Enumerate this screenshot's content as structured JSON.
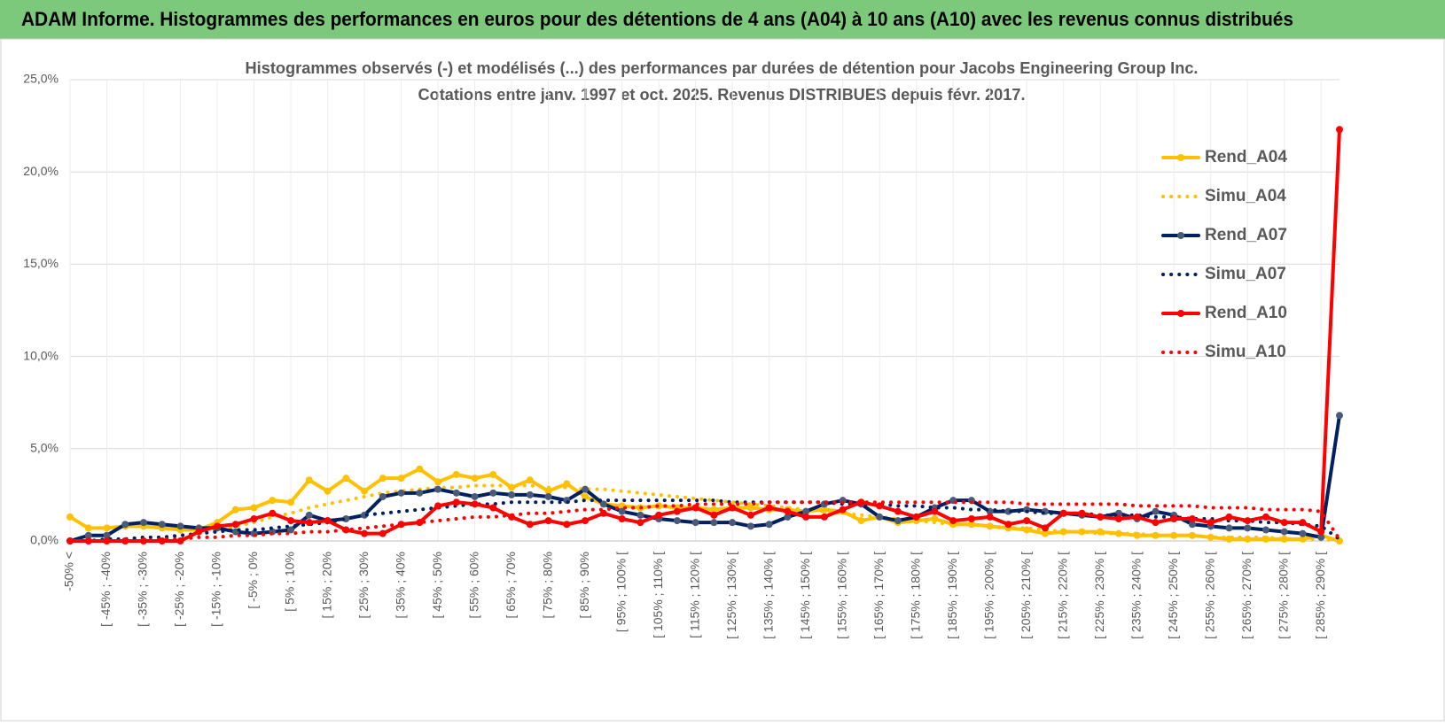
{
  "header": {
    "title": "ADAM Informe. Histogrammes des performances en euros pour des détentions de 4 ans (A04) à 10 ans (A10) avec les revenus connus distribués"
  },
  "chart_data": {
    "type": "line",
    "title": "Histogrammes observés (-) et modélisés (...) des performances par durées de détention pour Jacobs Engineering Group Inc.",
    "subtitle": "Cotations entre janv. 1997 et oct. 2025.  Revenus DISTRIBUES depuis févr. 2017.",
    "categories": [
      "-50% <",
      null,
      "[ -45% ; -40%",
      null,
      "[ -35% ; -30%",
      null,
      "[ -25% ; -20%",
      null,
      "[ -15% ; -10%",
      null,
      "[ -5% ; 0%",
      null,
      "[ 5% ; 10%",
      null,
      "[ 15% ; 20%",
      null,
      "[ 25% ; 30%",
      null,
      "[ 35% ; 40%",
      null,
      "[ 45% ; 50%",
      null,
      "[ 55% ; 60%",
      null,
      "[ 65% ; 70%",
      null,
      "[ 75% ; 80%",
      null,
      "[ 85% ; 90%",
      null,
      "[ 95% ; 100% [",
      null,
      "[ 105% ; 110% [",
      null,
      "[ 115% ; 120% [",
      null,
      "[ 125% ; 130% [",
      null,
      "[ 135% ; 140% [",
      null,
      "[ 145% ; 150% [",
      null,
      "[ 155% ; 160% [",
      null,
      "[ 165% ; 170% [",
      null,
      "[ 175% ; 180% [",
      null,
      "[ 185% ; 190% [",
      null,
      "[ 195% ; 200% [",
      null,
      "[ 205% ; 210% [",
      null,
      "[ 215% ; 220% [",
      null,
      "[ 225% ; 230% [",
      null,
      "[ 235% ; 240% [",
      null,
      "[ 245% ; 250% [",
      null,
      "[ 255% ; 260% [",
      null,
      "[ 265% ; 270% [",
      null,
      "[ 275% ; 280% [",
      null,
      "[ 285% ; 290% [",
      null
    ],
    "ylim": [
      0,
      25
    ],
    "yticks": [
      {
        "value": 0,
        "label": "0,0%"
      },
      {
        "value": 5,
        "label": "5,0%"
      },
      {
        "value": 10,
        "label": "10,0%"
      },
      {
        "value": 15,
        "label": "15,0%"
      },
      {
        "value": 20,
        "label": "20,0%"
      },
      {
        "value": 25,
        "label": "25,0%"
      }
    ],
    "grid": true,
    "legend": "right",
    "series": [
      {
        "name": "Rend_A04",
        "color": "#FFC000",
        "style": "solid",
        "values": [
          1.3,
          0.7,
          0.7,
          0.8,
          0.8,
          0.7,
          0.6,
          0.6,
          1.0,
          1.7,
          1.8,
          2.2,
          2.1,
          3.3,
          2.7,
          3.4,
          2.7,
          3.4,
          3.4,
          3.9,
          3.2,
          3.6,
          3.4,
          3.6,
          2.9,
          3.3,
          2.7,
          3.1,
          2.4,
          2.0,
          1.9,
          1.8,
          1.9,
          1.8,
          1.8,
          1.7,
          1.8,
          1.8,
          1.7,
          1.7,
          1.6,
          1.7,
          1.6,
          1.1,
          1.3,
          1.0,
          1.1,
          1.2,
          0.9,
          0.9,
          0.8,
          0.7,
          0.6,
          0.4,
          0.5,
          0.5,
          0.5,
          0.4,
          0.3,
          0.3,
          0.3,
          0.3,
          0.2,
          0.1,
          0.1,
          0.1,
          0.1,
          0.1,
          0.3,
          0.0
        ]
      },
      {
        "name": "Simu_A04",
        "color": "#FFC000",
        "style": "dotted",
        "values": [
          0.0,
          0.0,
          0.1,
          0.1,
          0.2,
          0.2,
          0.3,
          0.4,
          0.6,
          0.8,
          1.0,
          1.3,
          1.5,
          1.8,
          2.0,
          2.2,
          2.4,
          2.6,
          2.7,
          2.8,
          2.9,
          2.9,
          3.0,
          3.0,
          3.0,
          3.0,
          2.9,
          2.9,
          2.8,
          2.8,
          2.7,
          2.6,
          2.5,
          2.4,
          2.3,
          2.2,
          2.1,
          2.0,
          1.9,
          1.8,
          1.7,
          1.6,
          1.5,
          1.4,
          1.3,
          1.2,
          1.1,
          1.0,
          0.9,
          0.9,
          0.8,
          0.7,
          0.7,
          0.6,
          0.5,
          0.5,
          0.4,
          0.4,
          0.4,
          0.3,
          0.3,
          0.3,
          0.2,
          0.2,
          0.2,
          0.2,
          0.1,
          0.1,
          0.1,
          0.0
        ]
      },
      {
        "name": "Rend_A07",
        "color": "#002060",
        "style": "solid",
        "values": [
          0.0,
          0.3,
          0.3,
          0.9,
          1.0,
          0.9,
          0.8,
          0.7,
          0.7,
          0.5,
          0.4,
          0.5,
          0.6,
          1.4,
          1.1,
          1.2,
          1.4,
          2.4,
          2.6,
          2.6,
          2.8,
          2.6,
          2.4,
          2.6,
          2.5,
          2.5,
          2.4,
          2.2,
          2.8,
          2.0,
          1.6,
          1.4,
          1.2,
          1.1,
          1.0,
          1.0,
          1.0,
          0.8,
          0.9,
          1.3,
          1.6,
          2.0,
          2.2,
          2.0,
          1.3,
          1.1,
          1.3,
          1.8,
          2.2,
          2.2,
          1.6,
          1.6,
          1.7,
          1.6,
          1.5,
          1.4,
          1.3,
          1.5,
          1.2,
          1.6,
          1.4,
          0.9,
          0.8,
          0.7,
          0.7,
          0.6,
          0.5,
          0.4,
          0.2,
          6.8
        ]
      },
      {
        "name": "Simu_A07",
        "color": "#002060",
        "style": "dotted",
        "values": [
          0.0,
          0.0,
          0.1,
          0.1,
          0.2,
          0.2,
          0.3,
          0.4,
          0.5,
          0.6,
          0.6,
          0.7,
          0.8,
          0.9,
          1.0,
          1.2,
          1.4,
          1.5,
          1.6,
          1.7,
          1.8,
          1.9,
          2.0,
          2.0,
          2.1,
          2.1,
          2.1,
          2.1,
          2.2,
          2.2,
          2.2,
          2.2,
          2.2,
          2.2,
          2.2,
          2.2,
          2.1,
          2.1,
          2.1,
          2.1,
          2.1,
          2.1,
          2.0,
          2.0,
          2.0,
          1.9,
          1.9,
          1.8,
          1.8,
          1.7,
          1.7,
          1.6,
          1.6,
          1.5,
          1.5,
          1.5,
          1.4,
          1.4,
          1.4,
          1.3,
          1.3,
          1.2,
          1.2,
          1.1,
          1.1,
          1.0,
          1.0,
          0.9,
          0.8,
          0.1
        ]
      },
      {
        "name": "Rend_A10",
        "color": "#FF0000",
        "style": "solid",
        "values": [
          0.0,
          0.0,
          0.0,
          0.0,
          0.0,
          0.0,
          0.0,
          0.5,
          0.8,
          0.9,
          1.2,
          1.5,
          1.1,
          1.0,
          1.1,
          0.6,
          0.4,
          0.4,
          0.9,
          1.0,
          1.9,
          2.1,
          2.0,
          1.8,
          1.3,
          0.9,
          1.1,
          0.9,
          1.1,
          1.5,
          1.2,
          1.0,
          1.4,
          1.6,
          1.8,
          1.4,
          1.8,
          1.4,
          1.8,
          1.6,
          1.3,
          1.3,
          1.7,
          2.1,
          1.9,
          1.6,
          1.3,
          1.6,
          1.1,
          1.2,
          1.3,
          0.9,
          1.1,
          0.7,
          1.5,
          1.5,
          1.3,
          1.2,
          1.3,
          1.0,
          1.2,
          1.2,
          1.0,
          1.3,
          1.1,
          1.3,
          1.0,
          1.0,
          0.5,
          22.3
        ]
      },
      {
        "name": "Simu_A10",
        "color": "#FF0000",
        "style": "dotted",
        "values": [
          0.0,
          0.0,
          0.0,
          0.0,
          0.0,
          0.1,
          0.1,
          0.2,
          0.2,
          0.3,
          0.3,
          0.4,
          0.4,
          0.5,
          0.5,
          0.6,
          0.7,
          0.8,
          0.9,
          1.0,
          1.1,
          1.2,
          1.3,
          1.3,
          1.4,
          1.5,
          1.5,
          1.6,
          1.7,
          1.7,
          1.8,
          1.8,
          1.9,
          1.9,
          2.0,
          2.0,
          2.0,
          2.0,
          2.1,
          2.1,
          2.1,
          2.1,
          2.1,
          2.1,
          2.1,
          2.1,
          2.1,
          2.1,
          2.1,
          2.1,
          2.1,
          2.1,
          2.0,
          2.0,
          2.0,
          2.0,
          2.0,
          2.0,
          1.9,
          1.9,
          1.9,
          1.9,
          1.8,
          1.8,
          1.8,
          1.7,
          1.7,
          1.7,
          1.6,
          0.1
        ]
      }
    ]
  }
}
